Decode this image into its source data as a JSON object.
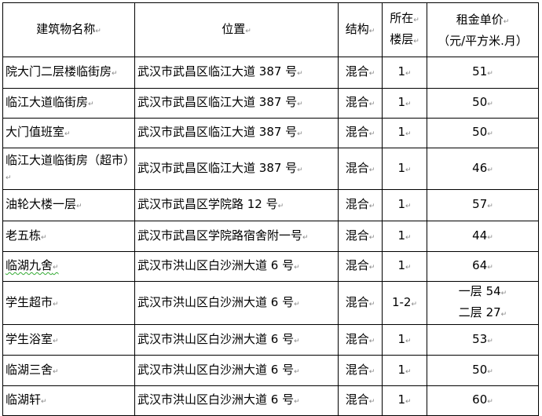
{
  "headers": {
    "name": "建筑物名称",
    "location": "位置",
    "structure": "结构",
    "floor_line1": "所在",
    "floor_line2": "楼层",
    "rent_line1": "租金单价",
    "rent_line2": "（元/平方米.月）"
  },
  "rows": [
    {
      "name": "院大门二层楼临街房",
      "location": "武汉市武昌区临江大道 387 号",
      "structure": "混合",
      "floor": "1",
      "rent": "51"
    },
    {
      "name": "临江大道临街房",
      "location": "武汉市武昌区临江大道 387 号",
      "structure": "混合",
      "floor": "1",
      "rent": "50"
    },
    {
      "name": "大门值班室",
      "location": "武汉市武昌区临江大道 387 号",
      "structure": "混合",
      "floor": "1",
      "rent": "50"
    },
    {
      "name": "临江大道临街房（超市）",
      "location": "武汉市武昌区临江大道 387 号",
      "structure": "混合",
      "floor": "1",
      "rent": "46"
    },
    {
      "name": "油轮大楼一层",
      "location": "武汉市武昌区学院路 12 号",
      "structure": "混合",
      "floor": "1",
      "rent": "57"
    },
    {
      "name": "老五栋",
      "location": "武汉市武昌区学院路宿舍附一号",
      "structure": "混合",
      "floor": "1",
      "rent": "44"
    },
    {
      "name": "临湖九舍",
      "location": "武汉市洪山区白沙洲大道 6 号",
      "structure": "混合",
      "floor": "1",
      "rent": "64"
    },
    {
      "name": "学生超市",
      "location": "武汉市洪山区白沙洲大道 6 号",
      "structure": "混合",
      "floor": "1-2",
      "rent": "一层 54",
      "rent2": "二层 27"
    },
    {
      "name": "学生浴室",
      "location": "武汉市洪山区白沙洲大道 6 号",
      "structure": "混合",
      "floor": "1",
      "rent": "53"
    },
    {
      "name": "临湖三舍",
      "location": "武汉市洪山区白沙洲大道 6 号",
      "structure": "混合",
      "floor": "1",
      "rent": "50"
    },
    {
      "name": "临湖轩",
      "location": "武汉市洪山区白沙洲大道 6 号",
      "structure": "混合",
      "floor": "1",
      "rent": "60"
    }
  ]
}
